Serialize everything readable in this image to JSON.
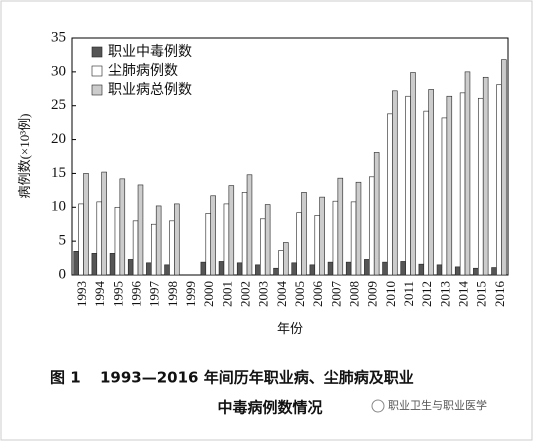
{
  "chart_data": {
    "type": "bar",
    "y_label": "病例数(×10³例)",
    "x_label": "年份",
    "categories": [
      "1993",
      "1994",
      "1995",
      "1996",
      "1997",
      "1998",
      "1999",
      "2000",
      "2001",
      "2002",
      "2003",
      "2004",
      "2005",
      "2006",
      "2007",
      "2008",
      "2009",
      "2010",
      "2011",
      "2012",
      "2013",
      "2014",
      "2015",
      "2016"
    ],
    "series": [
      {
        "name": "职业中毒例数",
        "color": "#555555",
        "values": [
          3.5,
          3.2,
          3.2,
          2.3,
          1.8,
          1.5,
          null,
          1.9,
          2.0,
          1.8,
          1.5,
          1.0,
          1.8,
          1.5,
          1.9,
          1.9,
          2.3,
          1.9,
          2.0,
          1.6,
          1.5,
          1.2,
          1.0,
          1.1
        ]
      },
      {
        "name": "尘肺病例数",
        "color": "#ffffff",
        "values": [
          10.5,
          10.8,
          10.0,
          8.0,
          7.5,
          8.0,
          null,
          9.1,
          10.5,
          12.2,
          8.3,
          3.6,
          9.2,
          8.8,
          10.9,
          10.8,
          14.5,
          23.8,
          26.4,
          24.2,
          23.2,
          26.9,
          26.1,
          28.1
        ]
      },
      {
        "name": "职业病总例数",
        "color": "#cccccc",
        "values": [
          15.0,
          15.2,
          14.2,
          13.3,
          10.2,
          10.5,
          null,
          11.7,
          13.2,
          14.8,
          10.4,
          4.8,
          12.2,
          11.5,
          14.3,
          13.7,
          18.1,
          27.2,
          29.9,
          27.4,
          26.4,
          30.0,
          29.2,
          31.8
        ]
      }
    ],
    "ylim": [
      0,
      35
    ],
    "yticks": [
      0,
      5,
      10,
      15,
      20,
      25,
      30,
      35
    ],
    "grid": false,
    "legend": "upper-left"
  },
  "caption": {
    "label": "图 1",
    "lines": [
      "1993—2016 年间历年职业病、尘肺病及职业",
      "中毒病例数情况"
    ]
  },
  "watermark": "职业卫生与职业医学"
}
